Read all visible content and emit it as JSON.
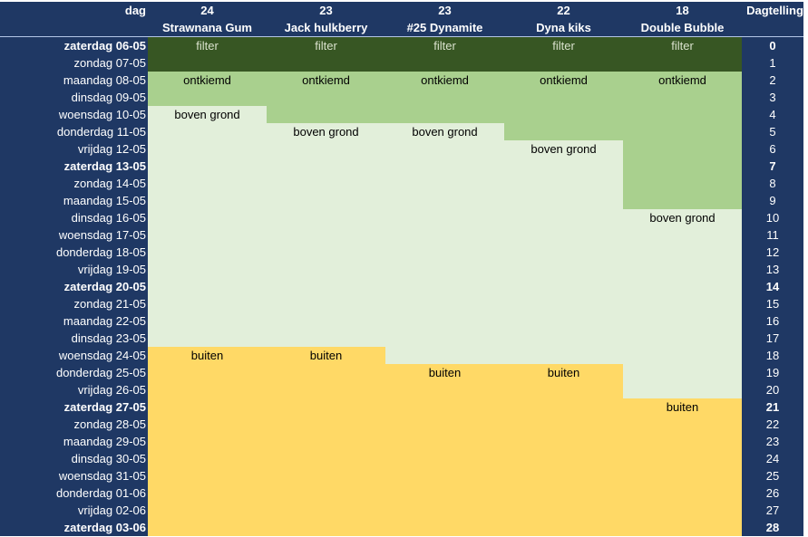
{
  "header": {
    "dag_label": "dag",
    "dagtelling_label": "Dagtelling",
    "plants": [
      {
        "number": "24",
        "name": "Strawnana Gum"
      },
      {
        "number": "23",
        "name": "Jack hulkberry"
      },
      {
        "number": "23",
        "name": "#25 Dynamite"
      },
      {
        "number": "22",
        "name": "Dyna kiks"
      },
      {
        "number": "18",
        "name": "Double Bubble"
      }
    ]
  },
  "stages": {
    "filter": {
      "label": "filter",
      "color": "#375623"
    },
    "ontkiemd": {
      "label": "ontkiemd",
      "color": "#a9d08e"
    },
    "boven_grond": {
      "label": "boven grond",
      "color": "#e2efda"
    },
    "buiten": {
      "label": "buiten",
      "color": "#ffd966"
    }
  },
  "colors": {
    "navy": "#1f3864",
    "white_text": "#ffffff"
  },
  "stage_start_days": [
    {
      "filter": 0,
      "ontkiemd": 2,
      "boven_grond": 4,
      "buiten": 18
    },
    {
      "filter": 0,
      "ontkiemd": 2,
      "boven_grond": 5,
      "buiten": 18
    },
    {
      "filter": 0,
      "ontkiemd": 2,
      "boven_grond": 5,
      "buiten": 19
    },
    {
      "filter": 0,
      "ontkiemd": 2,
      "boven_grond": 6,
      "buiten": 19
    },
    {
      "filter": 0,
      "ontkiemd": 2,
      "boven_grond": 10,
      "buiten": 21
    }
  ],
  "rows": [
    {
      "date": "zaterdag 06-05",
      "count": "0",
      "bold": true
    },
    {
      "date": "zondag 07-05",
      "count": "1",
      "bold": false
    },
    {
      "date": "maandag 08-05",
      "count": "2",
      "bold": false
    },
    {
      "date": "dinsdag 09-05",
      "count": "3",
      "bold": false
    },
    {
      "date": "woensdag 10-05",
      "count": "4",
      "bold": false
    },
    {
      "date": "donderdag 11-05",
      "count": "5",
      "bold": false
    },
    {
      "date": "vrijdag 12-05",
      "count": "6",
      "bold": false
    },
    {
      "date": "zaterdag 13-05",
      "count": "7",
      "bold": true
    },
    {
      "date": "zondag 14-05",
      "count": "8",
      "bold": false
    },
    {
      "date": "maandag 15-05",
      "count": "9",
      "bold": false
    },
    {
      "date": "dinsdag 16-05",
      "count": "10",
      "bold": false
    },
    {
      "date": "woensdag 17-05",
      "count": "11",
      "bold": false
    },
    {
      "date": "donderdag 18-05",
      "count": "12",
      "bold": false
    },
    {
      "date": "vrijdag 19-05",
      "count": "13",
      "bold": false
    },
    {
      "date": "zaterdag 20-05",
      "count": "14",
      "bold": true
    },
    {
      "date": "zondag 21-05",
      "count": "15",
      "bold": false
    },
    {
      "date": "maandag 22-05",
      "count": "16",
      "bold": false
    },
    {
      "date": "dinsdag 23-05",
      "count": "17",
      "bold": false
    },
    {
      "date": "woensdag 24-05",
      "count": "18",
      "bold": false
    },
    {
      "date": "donderdag 25-05",
      "count": "19",
      "bold": false
    },
    {
      "date": "vrijdag 26-05",
      "count": "20",
      "bold": false
    },
    {
      "date": "zaterdag 27-05",
      "count": "21",
      "bold": true
    },
    {
      "date": "zondag 28-05",
      "count": "22",
      "bold": false
    },
    {
      "date": "maandag 29-05",
      "count": "23",
      "bold": false
    },
    {
      "date": "dinsdag 30-05",
      "count": "24",
      "bold": false
    },
    {
      "date": "woensdag 31-05",
      "count": "25",
      "bold": false
    },
    {
      "date": "donderdag 01-06",
      "count": "26",
      "bold": false
    },
    {
      "date": "vrijdag 02-06",
      "count": "27",
      "bold": false
    },
    {
      "date": "zaterdag 03-06",
      "count": "28",
      "bold": true
    }
  ]
}
